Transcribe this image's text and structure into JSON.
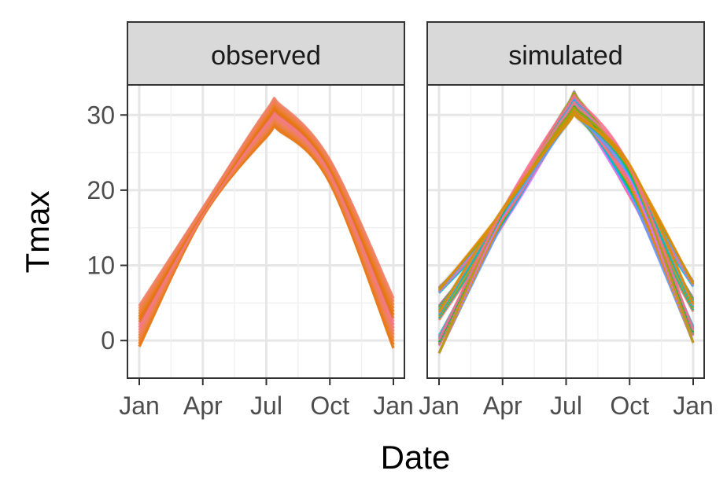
{
  "chart_data": {
    "type": "line",
    "facets": [
      "observed",
      "simulated"
    ],
    "xlabel": "Date",
    "ylabel": "Tmax",
    "x_ticks": [
      "Jan",
      "Apr",
      "Jul",
      "Oct",
      "Jan"
    ],
    "y_ticks": [
      0,
      10,
      20,
      30
    ],
    "ylim": [
      -5,
      34
    ],
    "grid": true,
    "panel_border": true,
    "confidence_bands": true,
    "panels": [
      {
        "facet": "observed",
        "series_count": 16,
        "series_colors": [
          "#E6730B",
          "#E8781A",
          "#EA7E2A",
          "#EC7F3D",
          "#EE8050",
          "#EF7F63",
          "#F07C72",
          "#F2797F",
          "#F47A8A",
          "#E37235"
        ],
        "x": [
          "Jan",
          "Apr",
          "Jul",
          "Oct",
          "Jan"
        ],
        "y_min": [
          -0.8,
          16.5,
          27.5,
          21.0,
          -1.0
        ],
        "y_max": [
          4.6,
          17.6,
          31.0,
          24.0,
          5.6
        ]
      },
      {
        "facet": "simulated",
        "series_count": 30,
        "series_colors": [
          "#F8766D",
          "#FF61C3",
          "#F564E3",
          "#DB72FB",
          "#619CFF",
          "#00B9E3",
          "#00BFC4",
          "#00C19A",
          "#00BA38",
          "#7CAE00",
          "#B79F00",
          "#E58700",
          "#FF6C91",
          "#F2798A",
          "#D89000"
        ],
        "x": [
          "Jan",
          "Apr",
          "Jul",
          "Oct",
          "Jan"
        ],
        "y_min": [
          -1.7,
          15.3,
          28.9,
          19.2,
          -0.3
        ],
        "y_max": [
          7.2,
          17.5,
          31.6,
          23.4,
          8.0
        ]
      }
    ]
  }
}
